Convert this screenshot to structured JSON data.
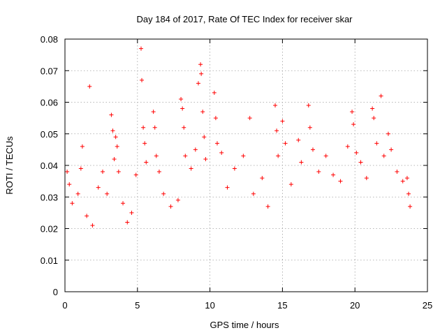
{
  "chart_data": {
    "type": "scatter",
    "title": "Day 184 of 2017, Rate Of TEC Index for receiver skar",
    "xlabel": "GPS time / hours",
    "ylabel": "ROTI / TECUs",
    "xlim": [
      0,
      25
    ],
    "ylim": [
      0,
      0.08
    ],
    "x_ticks": [
      "0",
      "5",
      "10",
      "15",
      "20",
      "25"
    ],
    "y_ticks": [
      "0",
      "0.01",
      "0.02",
      "0.03",
      "0.04",
      "0.05",
      "0.06",
      "0.07",
      "0.08"
    ],
    "grid": true,
    "marker": "+",
    "color": "#ff0000",
    "series": [
      {
        "points": [
          [
            0.15,
            0.038
          ],
          [
            0.3,
            0.034
          ],
          [
            0.5,
            0.028
          ],
          [
            0.9,
            0.031
          ],
          [
            1.1,
            0.039
          ],
          [
            1.7,
            0.065
          ],
          [
            1.2,
            0.046
          ],
          [
            1.5,
            0.024
          ],
          [
            1.9,
            0.021
          ],
          [
            2.3,
            0.033
          ],
          [
            2.6,
            0.038
          ],
          [
            2.9,
            0.031
          ],
          [
            3.2,
            0.056
          ],
          [
            3.3,
            0.051
          ],
          [
            3.5,
            0.049
          ],
          [
            3.6,
            0.046
          ],
          [
            3.7,
            0.038
          ],
          [
            3.4,
            0.042
          ],
          [
            4.0,
            0.028
          ],
          [
            4.3,
            0.022
          ],
          [
            4.6,
            0.025
          ],
          [
            4.9,
            0.037
          ],
          [
            5.25,
            0.077
          ],
          [
            5.3,
            0.067
          ],
          [
            5.4,
            0.052
          ],
          [
            5.5,
            0.047
          ],
          [
            5.6,
            0.041
          ],
          [
            6.1,
            0.057
          ],
          [
            6.2,
            0.052
          ],
          [
            6.3,
            0.043
          ],
          [
            6.5,
            0.038
          ],
          [
            6.8,
            0.031
          ],
          [
            7.3,
            0.027
          ],
          [
            7.8,
            0.029
          ],
          [
            8.0,
            0.061
          ],
          [
            8.1,
            0.058
          ],
          [
            8.2,
            0.052
          ],
          [
            8.3,
            0.043
          ],
          [
            8.7,
            0.039
          ],
          [
            9.0,
            0.045
          ],
          [
            9.2,
            0.066
          ],
          [
            9.35,
            0.072
          ],
          [
            9.4,
            0.069
          ],
          [
            9.5,
            0.057
          ],
          [
            9.6,
            0.049
          ],
          [
            9.7,
            0.042
          ],
          [
            10.3,
            0.063
          ],
          [
            10.4,
            0.055
          ],
          [
            10.5,
            0.047
          ],
          [
            10.8,
            0.044
          ],
          [
            11.2,
            0.033
          ],
          [
            11.7,
            0.039
          ],
          [
            12.3,
            0.043
          ],
          [
            12.75,
            0.055
          ],
          [
            13.0,
            0.031
          ],
          [
            13.6,
            0.036
          ],
          [
            14.0,
            0.027
          ],
          [
            14.5,
            0.059
          ],
          [
            14.6,
            0.051
          ],
          [
            14.7,
            0.043
          ],
          [
            15.0,
            0.054
          ],
          [
            15.2,
            0.047
          ],
          [
            15.6,
            0.034
          ],
          [
            16.1,
            0.048
          ],
          [
            16.3,
            0.041
          ],
          [
            16.8,
            0.059
          ],
          [
            16.9,
            0.052
          ],
          [
            17.1,
            0.045
          ],
          [
            17.5,
            0.038
          ],
          [
            18.0,
            0.043
          ],
          [
            18.5,
            0.037
          ],
          [
            19.0,
            0.035
          ],
          [
            19.5,
            0.046
          ],
          [
            19.8,
            0.057
          ],
          [
            19.9,
            0.053
          ],
          [
            20.1,
            0.044
          ],
          [
            20.4,
            0.041
          ],
          [
            20.8,
            0.036
          ],
          [
            21.2,
            0.058
          ],
          [
            21.3,
            0.055
          ],
          [
            21.5,
            0.047
          ],
          [
            21.8,
            0.062
          ],
          [
            22.0,
            0.043
          ],
          [
            22.3,
            0.05
          ],
          [
            22.5,
            0.045
          ],
          [
            22.9,
            0.038
          ],
          [
            23.3,
            0.035
          ],
          [
            23.6,
            0.036
          ],
          [
            23.7,
            0.031
          ],
          [
            23.8,
            0.027
          ]
        ]
      }
    ]
  }
}
